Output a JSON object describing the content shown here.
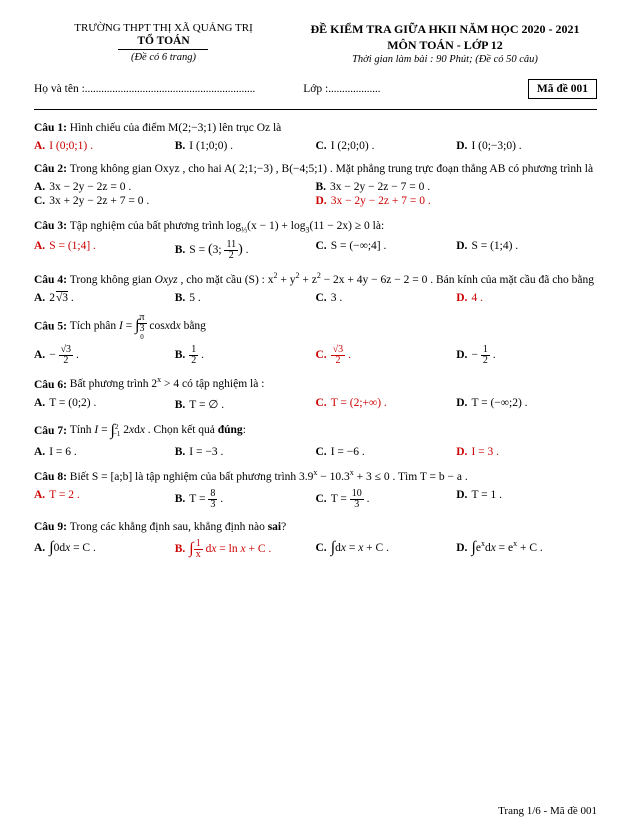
{
  "header": {
    "school": "TRƯỜNG THPT THỊ XÃ QUẢNG TRỊ",
    "dept": "TỔ TOÁN",
    "pages_note": "(Đề có 6 trang)",
    "exam_title": "ĐỀ KIỂM TRA GIỮA HKII NĂM HỌC 2020 - 2021",
    "subject": "MÔN TOÁN  - LỚP 12",
    "timing": "Thời gian làm bài : 90 Phút; (Đề có 50 câu)",
    "name_label": "Họ và tên :",
    "name_dots": "..............................................................",
    "class_label": "Lớp :",
    "class_dots": "...................",
    "code_label": "Mã đề 001"
  },
  "colors": {
    "text": "#000000",
    "emphasis": "#cc0000",
    "background": "#ffffff"
  },
  "questions": [
    {
      "label": "Câu 1:",
      "text": "Hình chiếu của điểm  M(2;−3;1)  lên trục  Oz  là",
      "opts": [
        {
          "l": "A.",
          "t": "I (0;0;1) .",
          "red": true
        },
        {
          "l": "B.",
          "t": "I (1;0;0) ."
        },
        {
          "l": "C.",
          "t": "I (2;0;0) ."
        },
        {
          "l": "D.",
          "t": "I (0;−3;0) ."
        }
      ]
    },
    {
      "label": "Câu 2:",
      "text": "Trong không gian  Oxyz , cho hai  A( 2;1;−3) , B(−4;5;1) . Mặt phẳng trung trực đoạn thẳng  AB  có phương trình là",
      "opts2": [
        {
          "l": "A.",
          "t": "3x − 2y − 2z = 0 ."
        },
        {
          "l": "B.",
          "t": "3x − 2y − 2z − 7 = 0 ."
        },
        {
          "l": "C.",
          "t": "3x + 2y − 2z + 7 = 0 ."
        },
        {
          "l": "D.",
          "t": "3x − 2y − 2z + 7 = 0 .",
          "red": true
        }
      ]
    },
    {
      "label": "Câu 3:",
      "text_html": "Tập nghiệm của bất phương trình  log<span class='sub'>⅓</span>(x − 1) + log<span class='sub'>3</span>(11 − 2x) ≥ 0  là:",
      "opts": [
        {
          "l": "A.",
          "t": "S = (1;4] .",
          "red": true
        },
        {
          "l": "B.",
          "html": "S = <span style='font-size:14px'>(</span>3; <span class='frac'><span class='n'>11</span><span class='d'>2</span></span><span style='font-size:14px'>)</span> ."
        },
        {
          "l": "C.",
          "t": "S = (−∞;4] ."
        },
        {
          "l": "D.",
          "t": "S = (1;4) ."
        }
      ]
    },
    {
      "label": "Câu 4:",
      "text_html": "Trong không gian  <i>Oxyz</i> , cho mặt cầu  (S) : x<span class='sup'>2</span> + y<span class='sup'>2</span> + z<span class='sup'>2</span> − 2x + 4y − 6z − 2 = 0  . Bán kính của mặt cầu đã cho bằng",
      "opts": [
        {
          "l": "A.",
          "html": "2<span class='sqrt'>√3</span> ."
        },
        {
          "l": "B.",
          "t": "5 ."
        },
        {
          "l": "C.",
          "t": "3 ."
        },
        {
          "l": "D.",
          "t": "4 .",
          "red": true
        }
      ]
    },
    {
      "label": "Câu 5:",
      "text_html": "Tích phân  <i>I</i> = <span class='int'>∫</span><span class='ilimits'><span class='frac'><span class='n'>π</span><span class='d'>3</span></span><br>0</span> cos<i>x</i>d<i>x</i>  bằng",
      "opts": [
        {
          "l": "A.",
          "html": "− <span class='frac'><span class='n'>√3</span><span class='d'>2</span></span> ."
        },
        {
          "l": "B.",
          "html": "<span class='frac'><span class='n'>1</span><span class='d'>2</span></span> ."
        },
        {
          "l": "C.",
          "html": "<span class='frac'><span class='n'>√3</span><span class='d'>2</span></span> .",
          "red": true
        },
        {
          "l": "D.",
          "html": "− <span class='frac'><span class='n'>1</span><span class='d'>2</span></span> ."
        }
      ]
    },
    {
      "label": "Câu 6:",
      "text_html": "Bất phương trình  2<span class='sup'>x</span> > 4  có tập nghiệm là :",
      "opts": [
        {
          "l": "A.",
          "t": "T = (0;2) ."
        },
        {
          "l": "B.",
          "t": "T = ∅ ."
        },
        {
          "l": "C.",
          "t": "T = (2;+∞) .",
          "red": true
        },
        {
          "l": "D.",
          "t": "T = (−∞;2) ."
        }
      ]
    },
    {
      "label": "Câu 7:",
      "text_html": "Tính  <i>I</i> = <span class='int'>∫</span><span class='ilimits'>2<br>−1</span> 2<i>x</i>d<i>x</i> . Chọn kết quả <b>đúng</b>:",
      "opts": [
        {
          "l": "A.",
          "t": "I = 6 ."
        },
        {
          "l": "B.",
          "t": "I = −3 ."
        },
        {
          "l": "C.",
          "t": "I = −6 ."
        },
        {
          "l": "D.",
          "t": "I = 3 .",
          "red": true
        }
      ]
    },
    {
      "label": "Câu 8:",
      "text_html": "Biết  S = [a;b]  là tập nghiệm của bất phương trình  3.9<span class='sup'>x</span> − 10.3<span class='sup'>x</span> + 3 ≤ 0 . Tìm  T = b − a .",
      "opts": [
        {
          "l": "A.",
          "t": "T = 2 .",
          "red": true
        },
        {
          "l": "B.",
          "html": "T = <span class='frac'><span class='n'>8</span><span class='d'>3</span></span> ."
        },
        {
          "l": "C.",
          "html": "T = <span class='frac'><span class='n'>10</span><span class='d'>3</span></span> ."
        },
        {
          "l": "D.",
          "t": "T = 1 ."
        }
      ]
    },
    {
      "label": "Câu 9:",
      "text_html": "Trong các khẳng định sau, khẳng định nào <b>sai</b>?",
      "opts": [
        {
          "l": "A.",
          "html": "<span class='int'>∫</span>0d<i>x</i> = C ."
        },
        {
          "l": "B.",
          "html": "<span class='int'>∫</span><span class='frac'><span class='n'>1</span><span class='d'>x</span></span> d<i>x</i> = ln <i>x</i> + C .",
          "red": true
        },
        {
          "l": "C.",
          "html": "<span class='int'>∫</span>d<i>x</i> = <i>x</i> + C ."
        },
        {
          "l": "D.",
          "html": "<span class='int'>∫</span>e<span class='sup'>x</span>d<i>x</i> = e<span class='sup'>x</span> + C ."
        }
      ]
    }
  ],
  "footer": "Trang 1/6 - Mã đề 001"
}
